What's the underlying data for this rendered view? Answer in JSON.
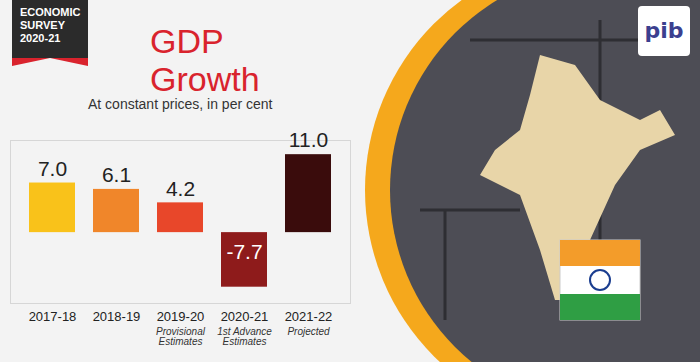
{
  "chart_data": {
    "type": "bar",
    "title": "GDP Growth",
    "subtitle": "At constant prices, in per cent",
    "categories": [
      "2017-18",
      "2018-19",
      "2019-20",
      "2020-21",
      "2021-22"
    ],
    "category_notes": [
      null,
      null,
      "Provisional Estimates",
      "1st Advance Estimates",
      "Projected"
    ],
    "values": [
      7.0,
      6.1,
      4.2,
      -7.7,
      11.0
    ],
    "value_labels": [
      "7.0",
      "6.1",
      "4.2",
      "-7.7",
      "11.0"
    ],
    "colors": [
      "#f9c21a",
      "#f0862a",
      "#e8472a",
      "#8e1b1b",
      "#3a0c0c"
    ],
    "ylim": [
      -10,
      13
    ],
    "data_labels": true,
    "tick_labels": "x",
    "grid": false
  },
  "badge": {
    "lines": [
      "ECONOMIC",
      "SURVEY",
      "2020-21"
    ]
  },
  "logo": "pib"
}
